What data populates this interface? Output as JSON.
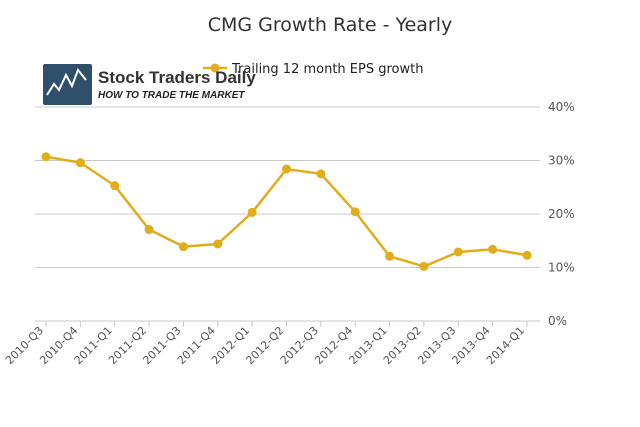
{
  "logo": {
    "name": "Stock Traders Daily",
    "tagline": "HOW TO TRADE THE MARKET"
  },
  "colors": {
    "series": "#e2ad1b",
    "grid": "#c8c8c8",
    "logo_bg": "#2f4f6a"
  },
  "chart_data": {
    "type": "line",
    "title": "CMG Growth Rate - Yearly",
    "xlabel": "",
    "ylabel": "",
    "ylim": [
      0,
      40
    ],
    "y_ticks": [
      "0%",
      "10%",
      "20%",
      "30%",
      "40%"
    ],
    "y_tick_values": [
      0,
      10,
      20,
      30,
      40
    ],
    "y_axis_side": "right",
    "grid": true,
    "legend_position": "top",
    "categories": [
      "2010-Q3",
      "2010-Q4",
      "2011-Q1",
      "2011-Q2",
      "2011-Q3",
      "2011-Q4",
      "2012-Q1",
      "2012-Q2",
      "2012-Q3",
      "2012-Q4",
      "2013-Q1",
      "2013-Q2",
      "2013-Q3",
      "2013-Q4",
      "2014-Q1"
    ],
    "series": [
      {
        "name": "Trailing 12 month EPS growth",
        "values": [
          30.7,
          29.6,
          25.3,
          17.1,
          13.9,
          14.4,
          20.3,
          28.4,
          27.5,
          20.4,
          12.1,
          10.2,
          12.9,
          13.4,
          12.3
        ]
      }
    ]
  }
}
